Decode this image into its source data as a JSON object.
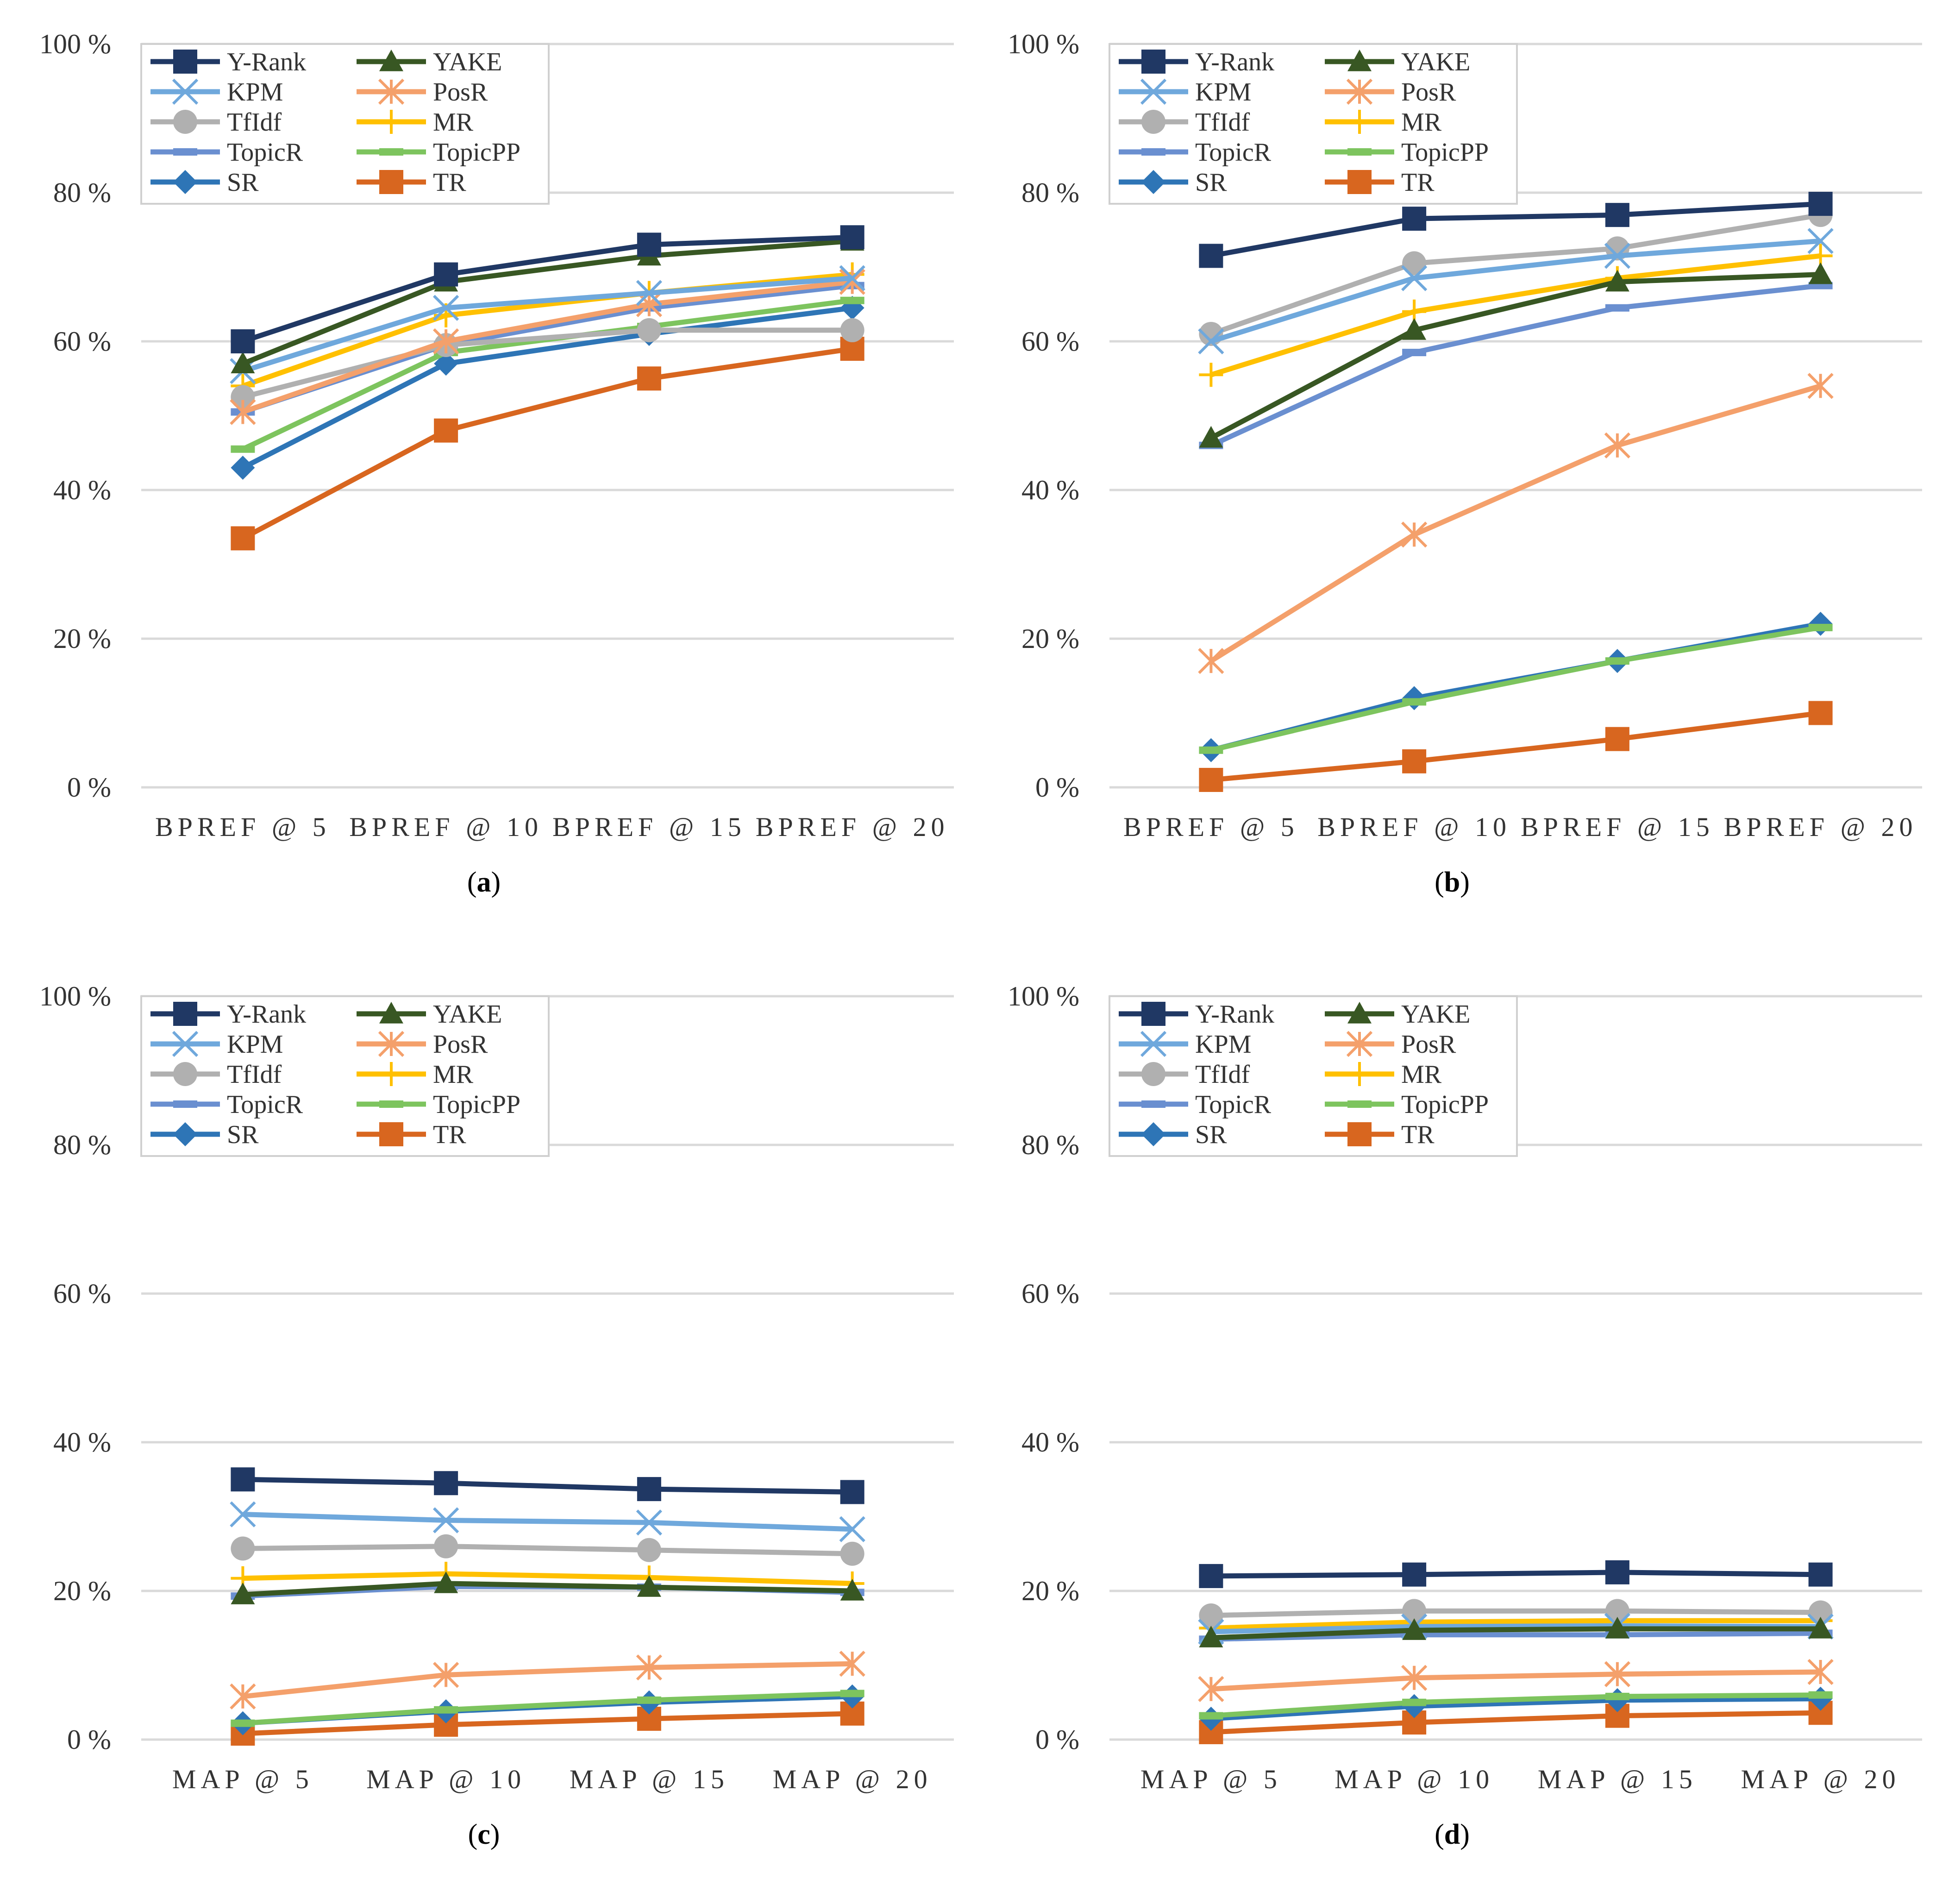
{
  "figure": {
    "panels": [
      "a",
      "b",
      "c",
      "d"
    ]
  },
  "chart_data": [
    {
      "id": "a",
      "caption": "a",
      "type": "line",
      "categories": [
        "BPREF @ 5",
        "BPREF @ 10",
        "BPREF @ 15",
        "BPREF @ 20"
      ],
      "ylim": [
        0,
        100
      ],
      "yticks": [
        "0 %",
        "20 %",
        "40 %",
        "60 %",
        "80 %",
        "100 %"
      ],
      "grid": true,
      "legend_position": "top-left",
      "series": [
        {
          "name": "Y-Rank",
          "color": "#203864",
          "marker": "square",
          "values": [
            60,
            69,
            73,
            74
          ]
        },
        {
          "name": "YAKE",
          "color": "#385723",
          "marker": "triangle",
          "values": [
            57,
            68,
            71.5,
            73.5
          ]
        },
        {
          "name": "KPM",
          "color": "#6fa8dc",
          "marker": "x",
          "values": [
            56,
            64.5,
            66.5,
            68.5
          ]
        },
        {
          "name": "PosR",
          "color": "#f4a06b",
          "marker": "star",
          "values": [
            50.5,
            60,
            65,
            68
          ]
        },
        {
          "name": "TfIdf",
          "color": "#b0b0b0",
          "marker": "circle",
          "values": [
            52.5,
            59.5,
            61.5,
            61.5
          ]
        },
        {
          "name": "MR",
          "color": "#ffc000",
          "marker": "plus",
          "values": [
            54,
            63.5,
            66.5,
            69
          ]
        },
        {
          "name": "TopicR",
          "color": "#6a8fd0",
          "marker": "dash",
          "values": [
            50.5,
            59.5,
            64.5,
            67.5
          ]
        },
        {
          "name": "TopicPP",
          "color": "#7dc45e",
          "marker": "dash",
          "values": [
            45.5,
            58.5,
            62,
            65.5
          ]
        },
        {
          "name": "SR",
          "color": "#2e75b6",
          "marker": "diamond",
          "values": [
            43,
            57,
            61,
            64.5
          ]
        },
        {
          "name": "TR",
          "color": "#d8661f",
          "marker": "square",
          "values": [
            33.5,
            48,
            55,
            59
          ]
        }
      ]
    },
    {
      "id": "b",
      "caption": "b",
      "type": "line",
      "categories": [
        "BPREF @ 5",
        "BPREF @ 10",
        "BPREF @ 15",
        "BPREF @ 20"
      ],
      "ylim": [
        0,
        100
      ],
      "yticks": [
        "0 %",
        "20 %",
        "40 %",
        "60 %",
        "80 %",
        "100 %"
      ],
      "grid": true,
      "legend_position": "top-left",
      "series": [
        {
          "name": "Y-Rank",
          "color": "#203864",
          "marker": "square",
          "values": [
            71.5,
            76.5,
            77,
            78.5
          ]
        },
        {
          "name": "YAKE",
          "color": "#385723",
          "marker": "triangle",
          "values": [
            47,
            61.5,
            68,
            69
          ]
        },
        {
          "name": "KPM",
          "color": "#6fa8dc",
          "marker": "x",
          "values": [
            60,
            68.5,
            71.5,
            73.5
          ]
        },
        {
          "name": "PosR",
          "color": "#f4a06b",
          "marker": "star",
          "values": [
            17,
            34,
            46,
            54
          ]
        },
        {
          "name": "TfIdf",
          "color": "#b0b0b0",
          "marker": "circle",
          "values": [
            61,
            70.5,
            72.5,
            77
          ]
        },
        {
          "name": "MR",
          "color": "#ffc000",
          "marker": "plus",
          "values": [
            55.5,
            64,
            68.5,
            71.5
          ]
        },
        {
          "name": "TopicR",
          "color": "#6a8fd0",
          "marker": "dash",
          "values": [
            46,
            58.5,
            64.5,
            67.5
          ]
        },
        {
          "name": "TopicPP",
          "color": "#7dc45e",
          "marker": "dash",
          "values": [
            5,
            11.5,
            17,
            21.5
          ]
        },
        {
          "name": "SR",
          "color": "#2e75b6",
          "marker": "diamond",
          "values": [
            5,
            12,
            17,
            22
          ]
        },
        {
          "name": "TR",
          "color": "#d8661f",
          "marker": "square",
          "values": [
            1,
            3.5,
            6.5,
            10
          ]
        }
      ]
    },
    {
      "id": "c",
      "caption": "c",
      "type": "line",
      "categories": [
        "MAP @ 5",
        "MAP @ 10",
        "MAP @ 15",
        "MAP @ 20"
      ],
      "ylim": [
        0,
        100
      ],
      "yticks": [
        "0 %",
        "20 %",
        "40 %",
        "60 %",
        "80 %",
        "100 %"
      ],
      "grid": true,
      "legend_position": "top-left",
      "series": [
        {
          "name": "Y-Rank",
          "color": "#203864",
          "marker": "square",
          "values": [
            35,
            34.5,
            33.7,
            33.3
          ]
        },
        {
          "name": "YAKE",
          "color": "#385723",
          "marker": "triangle",
          "values": [
            19.5,
            21,
            20.5,
            20
          ]
        },
        {
          "name": "KPM",
          "color": "#6fa8dc",
          "marker": "x",
          "values": [
            30.3,
            29.5,
            29.2,
            28.3
          ]
        },
        {
          "name": "PosR",
          "color": "#f4a06b",
          "marker": "star",
          "values": [
            5.8,
            8.7,
            9.7,
            10.2
          ]
        },
        {
          "name": "TfIdf",
          "color": "#b0b0b0",
          "marker": "circle",
          "values": [
            25.7,
            26,
            25.5,
            25
          ]
        },
        {
          "name": "MR",
          "color": "#ffc000",
          "marker": "plus",
          "values": [
            21.7,
            22.3,
            21.8,
            21
          ]
        },
        {
          "name": "TopicR",
          "color": "#6a8fd0",
          "marker": "dash",
          "values": [
            19.3,
            20.6,
            20.5,
            19.8
          ]
        },
        {
          "name": "TopicPP",
          "color": "#7dc45e",
          "marker": "dash",
          "values": [
            2.2,
            4,
            5.3,
            6.2
          ]
        },
        {
          "name": "SR",
          "color": "#2e75b6",
          "marker": "diamond",
          "values": [
            2.2,
            3.8,
            5,
            5.8
          ]
        },
        {
          "name": "TR",
          "color": "#d8661f",
          "marker": "square",
          "values": [
            0.8,
            2,
            2.8,
            3.5
          ]
        }
      ]
    },
    {
      "id": "d",
      "caption": "d",
      "type": "line",
      "categories": [
        "MAP @ 5",
        "MAP @ 10",
        "MAP @ 15",
        "MAP @ 20"
      ],
      "ylim": [
        0,
        100
      ],
      "yticks": [
        "0 %",
        "20 %",
        "40 %",
        "60 %",
        "80 %",
        "100 %"
      ],
      "grid": true,
      "legend_position": "top-left",
      "series": [
        {
          "name": "Y-Rank",
          "color": "#203864",
          "marker": "square",
          "values": [
            22,
            22.2,
            22.5,
            22.2
          ]
        },
        {
          "name": "YAKE",
          "color": "#385723",
          "marker": "triangle",
          "values": [
            13.7,
            14.7,
            14.9,
            14.9
          ]
        },
        {
          "name": "KPM",
          "color": "#6fa8dc",
          "marker": "x",
          "values": [
            14.5,
            15.2,
            15.3,
            15.2
          ]
        },
        {
          "name": "PosR",
          "color": "#f4a06b",
          "marker": "star",
          "values": [
            6.8,
            8.3,
            8.8,
            9.1
          ]
        },
        {
          "name": "TfIdf",
          "color": "#b0b0b0",
          "marker": "circle",
          "values": [
            16.7,
            17.3,
            17.3,
            17.1
          ]
        },
        {
          "name": "MR",
          "color": "#ffc000",
          "marker": "plus",
          "values": [
            15,
            15.8,
            16,
            16
          ]
        },
        {
          "name": "TopicR",
          "color": "#6a8fd0",
          "marker": "dash",
          "values": [
            13.5,
            14.1,
            14.1,
            14.3
          ]
        },
        {
          "name": "TopicPP",
          "color": "#7dc45e",
          "marker": "dash",
          "values": [
            3.2,
            5,
            5.8,
            6
          ]
        },
        {
          "name": "SR",
          "color": "#2e75b6",
          "marker": "diamond",
          "values": [
            2.8,
            4.5,
            5.3,
            5.5
          ]
        },
        {
          "name": "TR",
          "color": "#d8661f",
          "marker": "square",
          "values": [
            1,
            2.3,
            3.2,
            3.6
          ]
        }
      ]
    }
  ]
}
